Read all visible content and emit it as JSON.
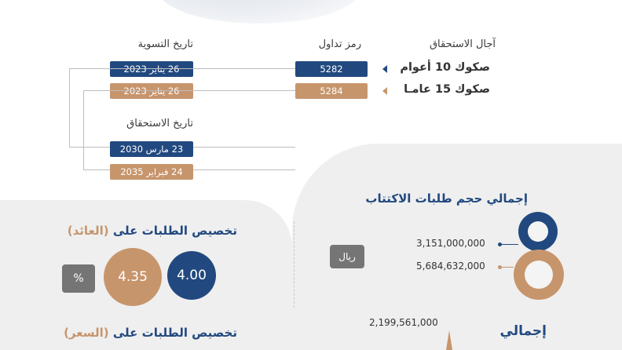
{
  "headers": {
    "maturity_tenor": "آجال الاستحقاق",
    "ticker": "رمز تداول",
    "settlement_date": "تاريخ التسوية",
    "maturity_date": "تاريخ الاستحقاق"
  },
  "rows": [
    {
      "name": "صكوك 10 أعوام",
      "ticker": "5282",
      "settlement": "26 يناير 2023",
      "maturity": "23 مارس 2030",
      "color": "#22497f"
    },
    {
      "name": "صكوك 15 عامـا",
      "ticker": "5284",
      "settlement": "26 يناير 2023",
      "maturity": "24 فبراير 2035",
      "color": "#c7956c"
    }
  ],
  "subscription": {
    "title": "إجمالي حجم طلبات الاكتتاب",
    "values": [
      "3,151,000,000",
      "5,684,632,000"
    ],
    "unit": "ريال"
  },
  "allocation_yield": {
    "title_main": "تخصيص الطلبات على",
    "title_sub": "(العائد)",
    "values": [
      "4.00",
      "4.35"
    ],
    "unit": "%"
  },
  "allocation_price": {
    "title_main": "تخصيص الطلبات على",
    "title_sub": "(السعر)"
  },
  "bottom": {
    "value": "2,199,561,000",
    "heading": "إجمالي"
  },
  "colors": {
    "navy": "#22497f",
    "tan": "#c7956c",
    "grey": "#757575",
    "panel": "#efefef"
  }
}
